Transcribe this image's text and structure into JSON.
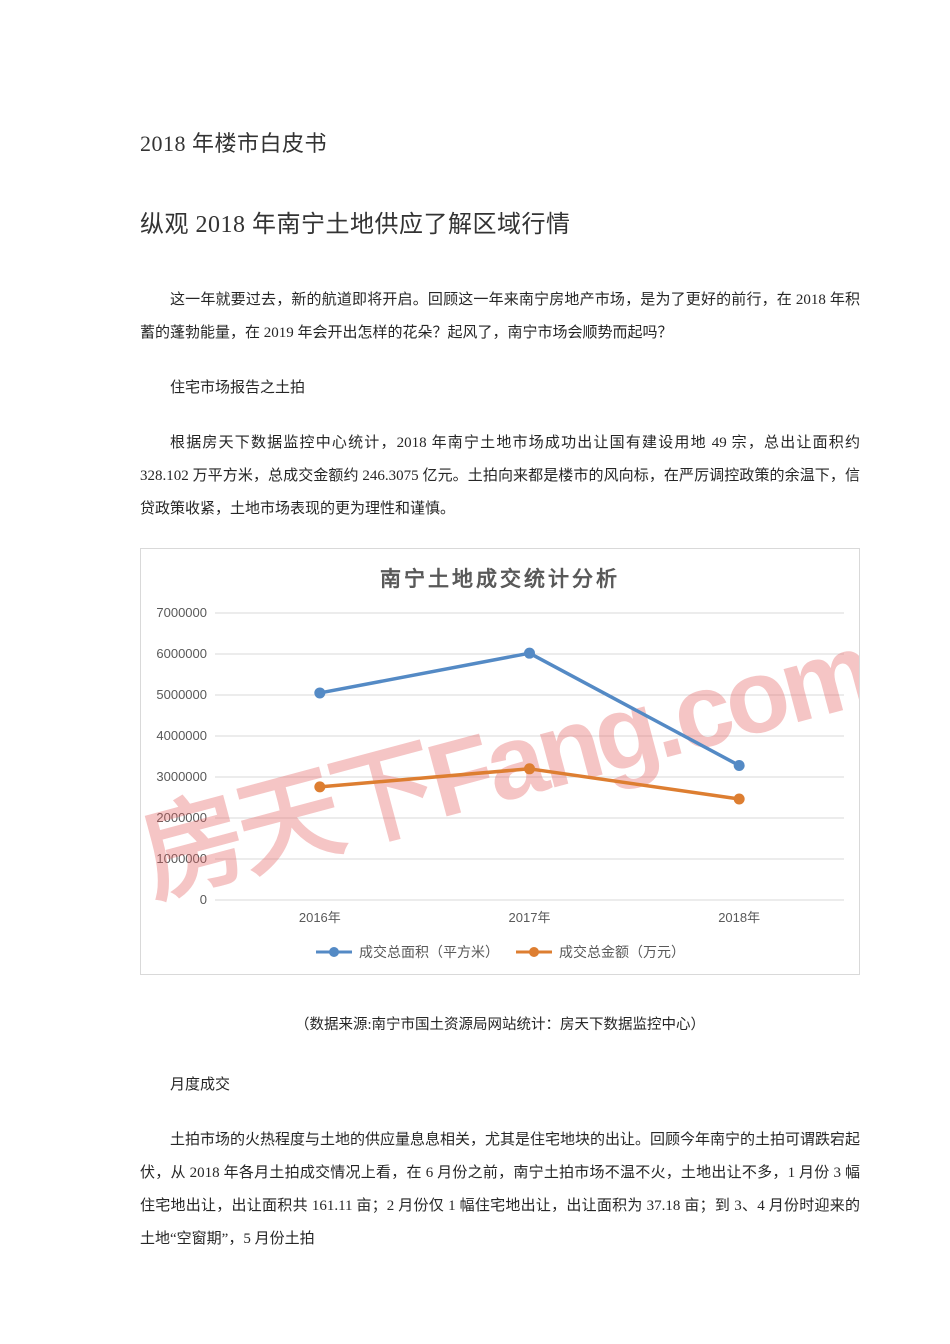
{
  "page": {
    "title": "2018 年楼市白皮书",
    "subtitle": "纵观 2018 年南宁土地供应了解区域行情",
    "paragraphs": {
      "intro": "这一年就要过去，新的航道即将开启。回顾这一年来南宁房地产市场，是为了更好的前行，在 2018 年积蓄的蓬勃能量，在 2019 年会开出怎样的花朵？起风了，南宁市场会顺势而起吗？",
      "heading1": "住宅市场报告之土拍",
      "land_auction": "根据房天下数据监控中心统计，2018 年南宁土地市场成功出让国有建设用地 49 宗，总出让面积约 328.102 万平方米，总成交金额约 246.3075 亿元。土拍向来都是楼市的风向标，在严厉调控政策的余温下，信贷政策收紧，土地市场表现的更为理性和谨慎。",
      "chart_caption": "（数据来源:南宁市国土资源局网站统计：房天下数据监控中心）",
      "heading2": "月度成交",
      "monthly": "土拍市场的火热程度与土地的供应量息息相关，尤其是住宅地块的出让。回顾今年南宁的土拍可谓跌宕起伏，从 2018 年各月土拍成交情况上看，在 6 月份之前，南宁土拍市场不温不火，土地出让不多，1 月份 3 幅住宅地出让，出让面积共 161.11 亩；2 月份仅 1 幅住宅地出让，出让面积为 37.18 亩；到 3、4 月份时迎来的土地“空窗期”，5 月份土拍"
    }
  },
  "chart_data": {
    "type": "line",
    "title": "南宁土地成交统计分析",
    "categories": [
      "2016年",
      "2017年",
      "2018年"
    ],
    "series": [
      {
        "name": "成交总面积（平方米）",
        "color": "#548ac5",
        "values": [
          5050000,
          6020000,
          3281020
        ]
      },
      {
        "name": "成交总金额（万元）",
        "color": "#dd7e31",
        "values": [
          2760000,
          3200000,
          2463075
        ]
      }
    ],
    "ylim": [
      0,
      7000000
    ],
    "ytick_interval": 1000000,
    "grid": true,
    "legend_position": "bottom",
    "watermark": "房天下Fang.com",
    "colors": {
      "grid": "#d9d9d9",
      "axis_text": "#595959",
      "watermark": "rgba(226,95,95,0.36)"
    }
  }
}
